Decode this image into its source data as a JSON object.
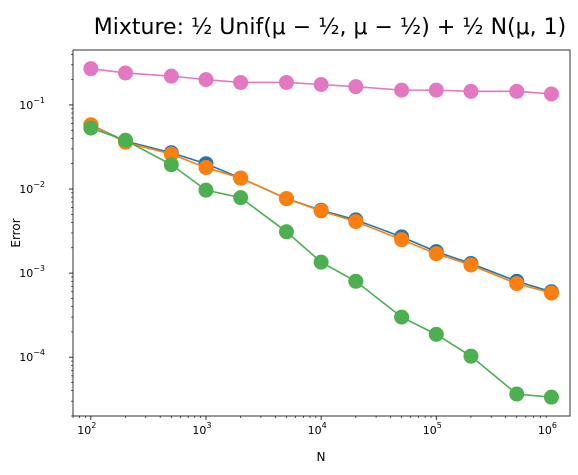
{
  "chart_data": {
    "type": "line",
    "title": "Mixture: ½ Unif(μ − ½, μ − ½) + ½ N(μ, 1)",
    "xlabel": "N",
    "ylabel": "Error",
    "xscale": "log",
    "yscale": "log",
    "xlim": [
      70,
      1450000
    ],
    "ylim": [
      2e-05,
      0.45
    ],
    "grid": false,
    "legend": "none",
    "x": [
      100,
      200,
      500,
      1000,
      2000,
      5000,
      10000,
      20000,
      50000,
      100000,
      200000,
      500000,
      1000000
    ],
    "x_ticks": [
      {
        "value": 100,
        "base": "10",
        "exp": "2"
      },
      {
        "value": 1000,
        "base": "10",
        "exp": "3"
      },
      {
        "value": 10000,
        "base": "10",
        "exp": "4"
      },
      {
        "value": 100000,
        "base": "10",
        "exp": "5"
      },
      {
        "value": 1000000,
        "base": "10",
        "exp": "6"
      }
    ],
    "y_ticks": [
      {
        "value": 0.1,
        "base": "10",
        "exp": "−1"
      },
      {
        "value": 0.01,
        "base": "10",
        "exp": "−2"
      },
      {
        "value": 0.001,
        "base": "10",
        "exp": "−3"
      },
      {
        "value": 0.0001,
        "base": "10",
        "exp": "−4"
      }
    ],
    "series": [
      {
        "color": "#e377c2",
        "values": [
          0.27,
          0.24,
          0.22,
          0.2,
          0.185,
          0.185,
          0.175,
          0.165,
          0.15,
          0.15,
          0.145,
          0.145,
          0.135
        ]
      },
      {
        "color": "#1f77b4",
        "values": [
          0.058,
          0.037,
          0.027,
          0.02,
          0.0135,
          0.0077,
          0.0056,
          0.0043,
          0.0027,
          0.0018,
          0.0013,
          0.0008,
          0.0006
        ]
      },
      {
        "color": "#ff7f0e",
        "values": [
          0.058,
          0.036,
          0.026,
          0.018,
          0.0135,
          0.0077,
          0.0055,
          0.0041,
          0.0025,
          0.0017,
          0.00125,
          0.00075,
          0.00058
        ]
      },
      {
        "color": "#4caf50",
        "values": [
          0.053,
          0.038,
          0.0195,
          0.0097,
          0.0079,
          0.0031,
          0.00135,
          0.0008,
          0.0003,
          0.000187,
          0.000103,
          3.65e-05,
          3.35e-05
        ]
      }
    ]
  }
}
